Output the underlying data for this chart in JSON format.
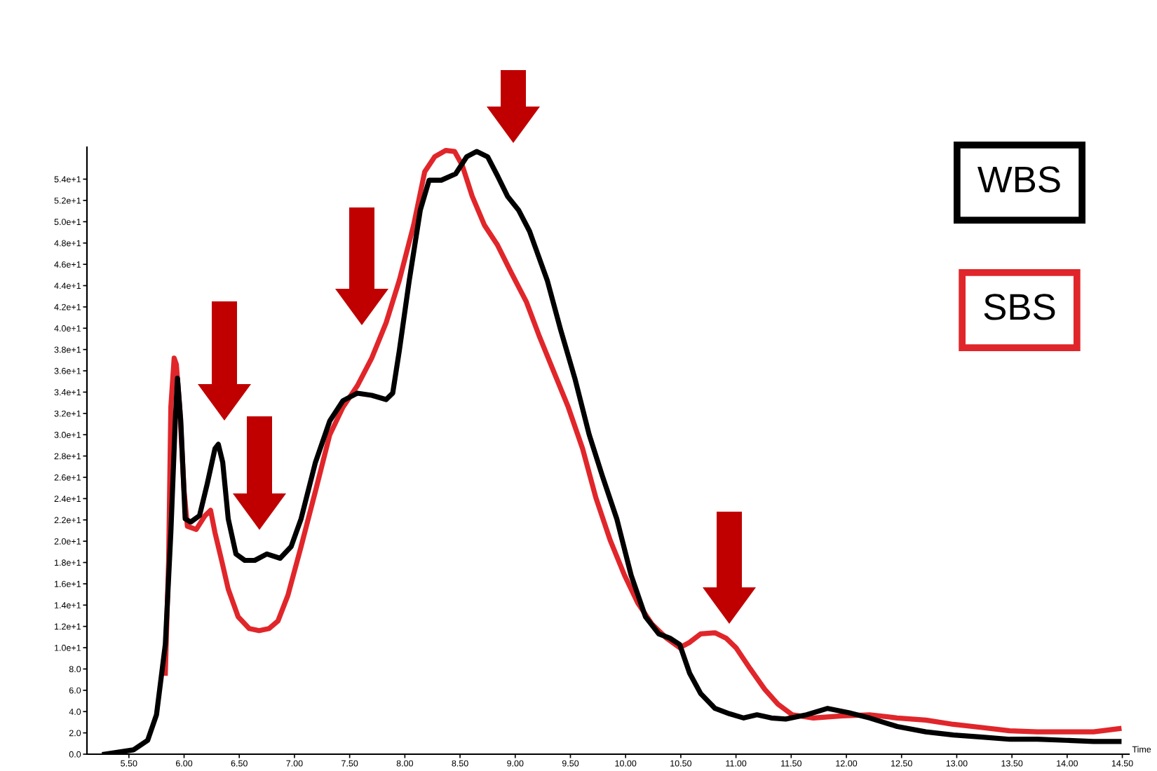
{
  "chart_data": {
    "type": "line",
    "xlabel": "Time",
    "xlim": [
      5.12,
      14.56
    ],
    "ylim": [
      0,
      57
    ],
    "xticks": [
      {
        "value": 5.5,
        "label": "5.50"
      },
      {
        "value": 6.0,
        "label": "6.00"
      },
      {
        "value": 6.5,
        "label": "6.50"
      },
      {
        "value": 7.0,
        "label": "7.00"
      },
      {
        "value": 7.5,
        "label": "7.50"
      },
      {
        "value": 8.0,
        "label": "8.00"
      },
      {
        "value": 8.5,
        "label": "8.50"
      },
      {
        "value": 9.0,
        "label": "9.00"
      },
      {
        "value": 9.5,
        "label": "9.50"
      },
      {
        "value": 10.0,
        "label": "10.00"
      },
      {
        "value": 10.5,
        "label": "10.50"
      },
      {
        "value": 11.0,
        "label": "11.00"
      },
      {
        "value": 11.5,
        "label": "11.50"
      },
      {
        "value": 12.0,
        "label": "12.00"
      },
      {
        "value": 12.5,
        "label": "12.50"
      },
      {
        "value": 13.0,
        "label": "13.00"
      },
      {
        "value": 13.5,
        "label": "13.50"
      },
      {
        "value": 14.0,
        "label": "14.00"
      },
      {
        "value": 14.5,
        "label": "14.50"
      }
    ],
    "yticks": [
      {
        "value": 0,
        "label": "0.0"
      },
      {
        "value": 2,
        "label": "2.0"
      },
      {
        "value": 4,
        "label": "4.0"
      },
      {
        "value": 6,
        "label": "6.0"
      },
      {
        "value": 8,
        "label": "8.0"
      },
      {
        "value": 10,
        "label": "1.0e+1"
      },
      {
        "value": 12,
        "label": "1.2e+1"
      },
      {
        "value": 14,
        "label": "1.4e+1"
      },
      {
        "value": 16,
        "label": "1.6e+1"
      },
      {
        "value": 18,
        "label": "1.8e+1"
      },
      {
        "value": 20,
        "label": "2.0e+1"
      },
      {
        "value": 22,
        "label": "2.2e+1"
      },
      {
        "value": 24,
        "label": "2.4e+1"
      },
      {
        "value": 26,
        "label": "2.6e+1"
      },
      {
        "value": 28,
        "label": "2.8e+1"
      },
      {
        "value": 30,
        "label": "3.0e+1"
      },
      {
        "value": 32,
        "label": "3.2e+1"
      },
      {
        "value": 34,
        "label": "3.4e+1"
      },
      {
        "value": 36,
        "label": "3.6e+1"
      },
      {
        "value": 38,
        "label": "3.8e+1"
      },
      {
        "value": 40,
        "label": "4.0e+1"
      },
      {
        "value": 42,
        "label": "4.2e+1"
      },
      {
        "value": 44,
        "label": "4.4e+1"
      },
      {
        "value": 46,
        "label": "4.6e+1"
      },
      {
        "value": 48,
        "label": "4.8e+1"
      },
      {
        "value": 50,
        "label": "5.0e+1"
      },
      {
        "value": 52,
        "label": "5.2e+1"
      },
      {
        "value": 54,
        "label": "5.4e+1"
      }
    ],
    "grid": false,
    "legend": "top right",
    "marker": "none",
    "line_style": "solid",
    "series": [
      {
        "name": "WBS",
        "color": "#000000",
        "x": [
          5.28,
          5.54,
          5.67,
          5.75,
          5.83,
          5.88,
          5.92,
          5.94,
          5.97,
          6.01,
          6.06,
          6.14,
          6.21,
          6.28,
          6.31,
          6.35,
          6.4,
          6.47,
          6.55,
          6.64,
          6.75,
          6.87,
          6.97,
          7.06,
          7.19,
          7.32,
          7.44,
          7.57,
          7.7,
          7.83,
          7.89,
          7.95,
          8.04,
          8.14,
          8.22,
          8.33,
          8.46,
          8.56,
          8.65,
          8.75,
          8.84,
          8.93,
          9.03,
          9.13,
          9.29,
          9.41,
          9.54,
          9.67,
          9.79,
          9.92,
          10.05,
          10.18,
          10.3,
          10.4,
          10.49,
          10.58,
          10.68,
          10.81,
          10.94,
          11.07,
          11.19,
          11.32,
          11.45,
          11.64,
          11.83,
          12.02,
          12.21,
          12.46,
          12.72,
          12.97,
          13.23,
          13.48,
          13.73,
          13.99,
          14.24,
          14.47
        ],
        "values": [
          0,
          0.4,
          1.3,
          3.7,
          10.3,
          20.8,
          31.3,
          35.3,
          31.3,
          22.1,
          21.8,
          22.4,
          25.4,
          28.7,
          29.1,
          27.4,
          22.1,
          18.8,
          18.2,
          18.2,
          18.8,
          18.4,
          19.5,
          22.1,
          27.4,
          31.3,
          33.2,
          33.9,
          33.7,
          33.3,
          33.9,
          37.9,
          44.5,
          51.1,
          53.9,
          53.9,
          54.5,
          56.1,
          56.6,
          56.1,
          54.3,
          52.4,
          51.1,
          49.1,
          44.5,
          39.9,
          35.3,
          30.0,
          26.1,
          22.1,
          16.8,
          12.9,
          11.3,
          10.9,
          10.3,
          7.6,
          5.7,
          4.3,
          3.8,
          3.4,
          3.7,
          3.4,
          3.3,
          3.7,
          4.3,
          3.9,
          3.4,
          2.6,
          2.1,
          1.8,
          1.6,
          1.4,
          1.4,
          1.3,
          1.2,
          1.2
        ]
      },
      {
        "name": "SBS",
        "color": "#e0262a",
        "x": [
          5.83,
          5.86,
          5.88,
          5.91,
          5.93,
          5.96,
          6.0,
          6.03,
          6.11,
          6.19,
          6.24,
          6.28,
          6.34,
          6.4,
          6.49,
          6.59,
          6.68,
          6.77,
          6.85,
          6.94,
          7.06,
          7.19,
          7.32,
          7.44,
          7.57,
          7.7,
          7.83,
          7.95,
          8.08,
          8.18,
          8.27,
          8.37,
          8.45,
          8.52,
          8.61,
          8.72,
          8.84,
          8.97,
          9.1,
          9.22,
          9.35,
          9.48,
          9.61,
          9.73,
          9.86,
          9.99,
          10.11,
          10.24,
          10.37,
          10.49,
          10.58,
          10.68,
          10.81,
          10.91,
          11.0,
          11.13,
          11.26,
          11.38,
          11.51,
          11.7,
          11.96,
          12.21,
          12.46,
          12.72,
          12.97,
          13.23,
          13.48,
          13.73,
          13.99,
          14.24,
          14.47
        ],
        "values": [
          7.6,
          18.2,
          32.6,
          37.2,
          36.6,
          32.6,
          24.7,
          21.4,
          21.1,
          22.4,
          22.9,
          20.8,
          18.2,
          15.5,
          12.9,
          11.8,
          11.6,
          11.8,
          12.5,
          14.9,
          19.5,
          24.7,
          30.0,
          32.6,
          34.6,
          37.2,
          40.5,
          44.5,
          49.7,
          54.7,
          56.1,
          56.7,
          56.6,
          55.3,
          52.4,
          49.7,
          47.8,
          45.1,
          42.5,
          39.2,
          35.9,
          32.6,
          28.7,
          24.1,
          20.1,
          16.8,
          14.2,
          12.2,
          10.9,
          10.0,
          10.5,
          11.3,
          11.4,
          10.9,
          10.0,
          8.0,
          6.1,
          4.7,
          3.7,
          3.4,
          3.6,
          3.7,
          3.4,
          3.2,
          2.8,
          2.5,
          2.2,
          2.1,
          2.1,
          2.1,
          2.4
        ]
      }
    ]
  }
}
